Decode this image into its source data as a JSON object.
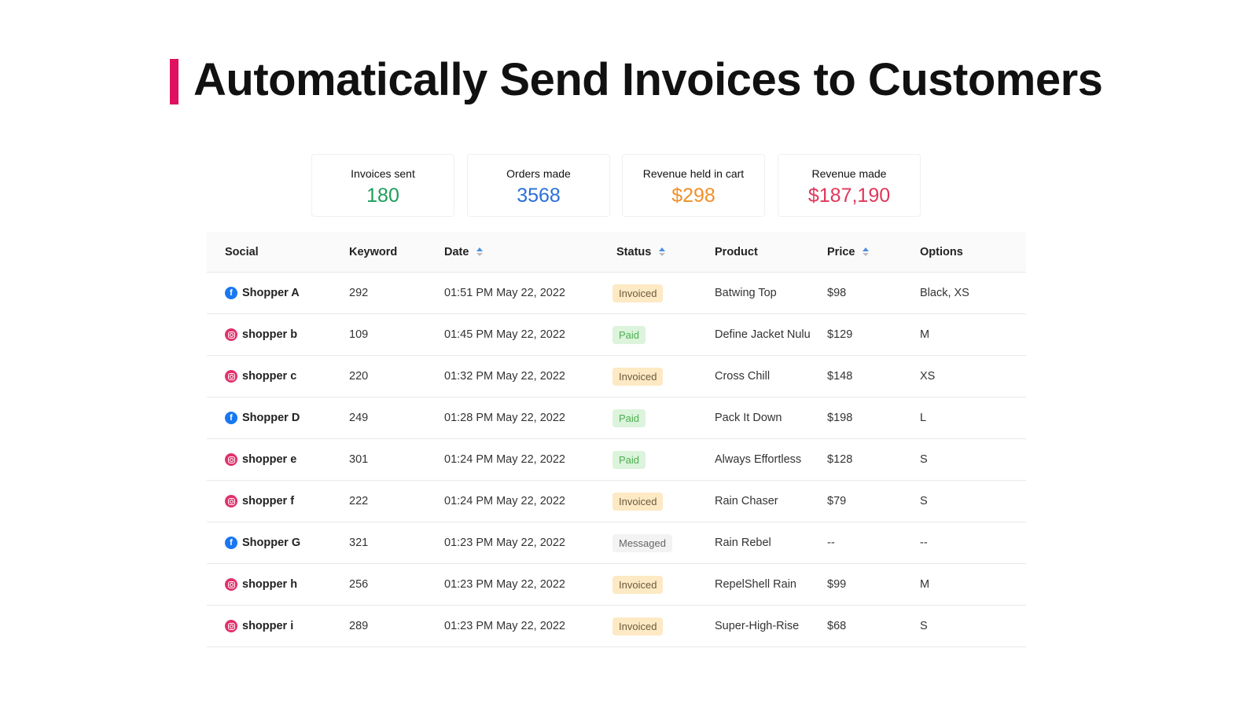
{
  "title": "Automatically Send Invoices to Customers",
  "colors": {
    "accent": "#e0115f",
    "green": "#1e9e5a",
    "blue": "#2b6fd6",
    "orange": "#f0902a",
    "red": "#e0365a"
  },
  "stats": [
    {
      "label": "Invoices sent",
      "value": "180",
      "color": "#1e9e5a"
    },
    {
      "label": "Orders made",
      "value": "3568",
      "color": "#2b6fd6"
    },
    {
      "label": "Revenue held in cart",
      "value": "$298",
      "color": "#f0902a"
    },
    {
      "label": "Revenue made",
      "value": "$187,190",
      "color": "#e0365a"
    }
  ],
  "columns": [
    {
      "label": "Social",
      "sortable": false
    },
    {
      "label": "Keyword",
      "sortable": false
    },
    {
      "label": "Date",
      "sortable": true
    },
    {
      "label": "Status",
      "sortable": true
    },
    {
      "label": "Product",
      "sortable": false
    },
    {
      "label": "Price",
      "sortable": true
    },
    {
      "label": "Options",
      "sortable": false
    }
  ],
  "status_styles": {
    "Invoiced": {
      "bg": "#fde9c4",
      "fg": "#6b5a3a"
    },
    "Paid": {
      "bg": "#dcf3dc",
      "fg": "#4caf50"
    },
    "Messaged": {
      "bg": "#f3f3f3",
      "fg": "#666"
    }
  },
  "rows": [
    {
      "social": "facebook-icon",
      "name": "Shopper A",
      "keyword": "292",
      "date": "01:51 PM May 22, 2022",
      "status": "Invoiced",
      "product": "Batwing Top",
      "price": "$98",
      "options": "Black, XS"
    },
    {
      "social": "instagram-icon",
      "name": "shopper b",
      "keyword": "109",
      "date": "01:45 PM May 22, 2022",
      "status": "Paid",
      "product": "Define Jacket Nulu",
      "price": "$129",
      "options": "M"
    },
    {
      "social": "instagram-icon",
      "name": "shopper c",
      "keyword": "220",
      "date": "01:32 PM May 22, 2022",
      "status": "Invoiced",
      "product": "Cross Chill",
      "price": "$148",
      "options": "XS"
    },
    {
      "social": "facebook-icon",
      "name": "Shopper D",
      "keyword": "249",
      "date": "01:28 PM May 22, 2022",
      "status": "Paid",
      "product": "Pack It Down",
      "price": "$198",
      "options": "L"
    },
    {
      "social": "instagram-icon",
      "name": "shopper e",
      "keyword": "301",
      "date": "01:24 PM May 22, 2022",
      "status": "Paid",
      "product": "Always Effortless",
      "price": "$128",
      "options": "S"
    },
    {
      "social": "instagram-icon",
      "name": "shopper f",
      "keyword": "222",
      "date": "01:24 PM May 22, 2022",
      "status": "Invoiced",
      "product": "Rain Chaser",
      "price": "$79",
      "options": "S"
    },
    {
      "social": "facebook-icon",
      "name": "Shopper G",
      "keyword": "321",
      "date": "01:23 PM May 22, 2022",
      "status": "Messaged",
      "product": "Rain Rebel",
      "price": "--",
      "options": "--"
    },
    {
      "social": "instagram-icon",
      "name": "shopper h",
      "keyword": "256",
      "date": "01:23 PM May 22, 2022",
      "status": "Invoiced",
      "product": "RepelShell Rain",
      "price": "$99",
      "options": "M"
    },
    {
      "social": "instagram-icon",
      "name": "shopper i",
      "keyword": "289",
      "date": "01:23 PM May 22, 2022",
      "status": "Invoiced",
      "product": "Super-High-Rise",
      "price": "$68",
      "options": "S"
    }
  ]
}
